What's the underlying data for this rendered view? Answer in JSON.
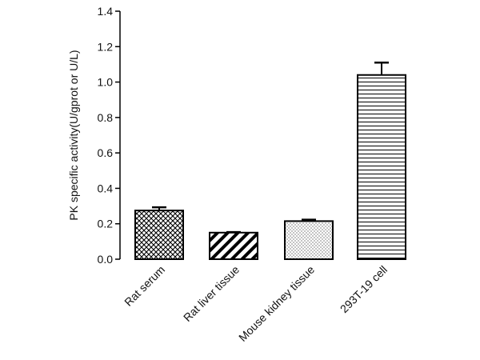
{
  "chart_data": {
    "type": "bar",
    "title": "",
    "xlabel": "",
    "ylabel": "PK specific activity(U/gprot or U/L)",
    "ylim": [
      0,
      1.4
    ],
    "yticks": [
      "0.0",
      "0.2",
      "0.4",
      "0.6",
      "0.8",
      "1.0",
      "1.2",
      "1.4"
    ],
    "grid": false,
    "legend": "none",
    "categories": [
      "Rat serum",
      "Rat liver tissue",
      "Mouse kidney tissue",
      "293T-19 cell"
    ],
    "values": [
      0.275,
      0.15,
      0.215,
      1.04
    ],
    "error": [
      0.018,
      0.004,
      0.008,
      0.07
    ],
    "patterns": [
      "crosshatch",
      "diagonal-stripes",
      "dots",
      "horizontal-lines"
    ],
    "bar_color": "#000000"
  }
}
